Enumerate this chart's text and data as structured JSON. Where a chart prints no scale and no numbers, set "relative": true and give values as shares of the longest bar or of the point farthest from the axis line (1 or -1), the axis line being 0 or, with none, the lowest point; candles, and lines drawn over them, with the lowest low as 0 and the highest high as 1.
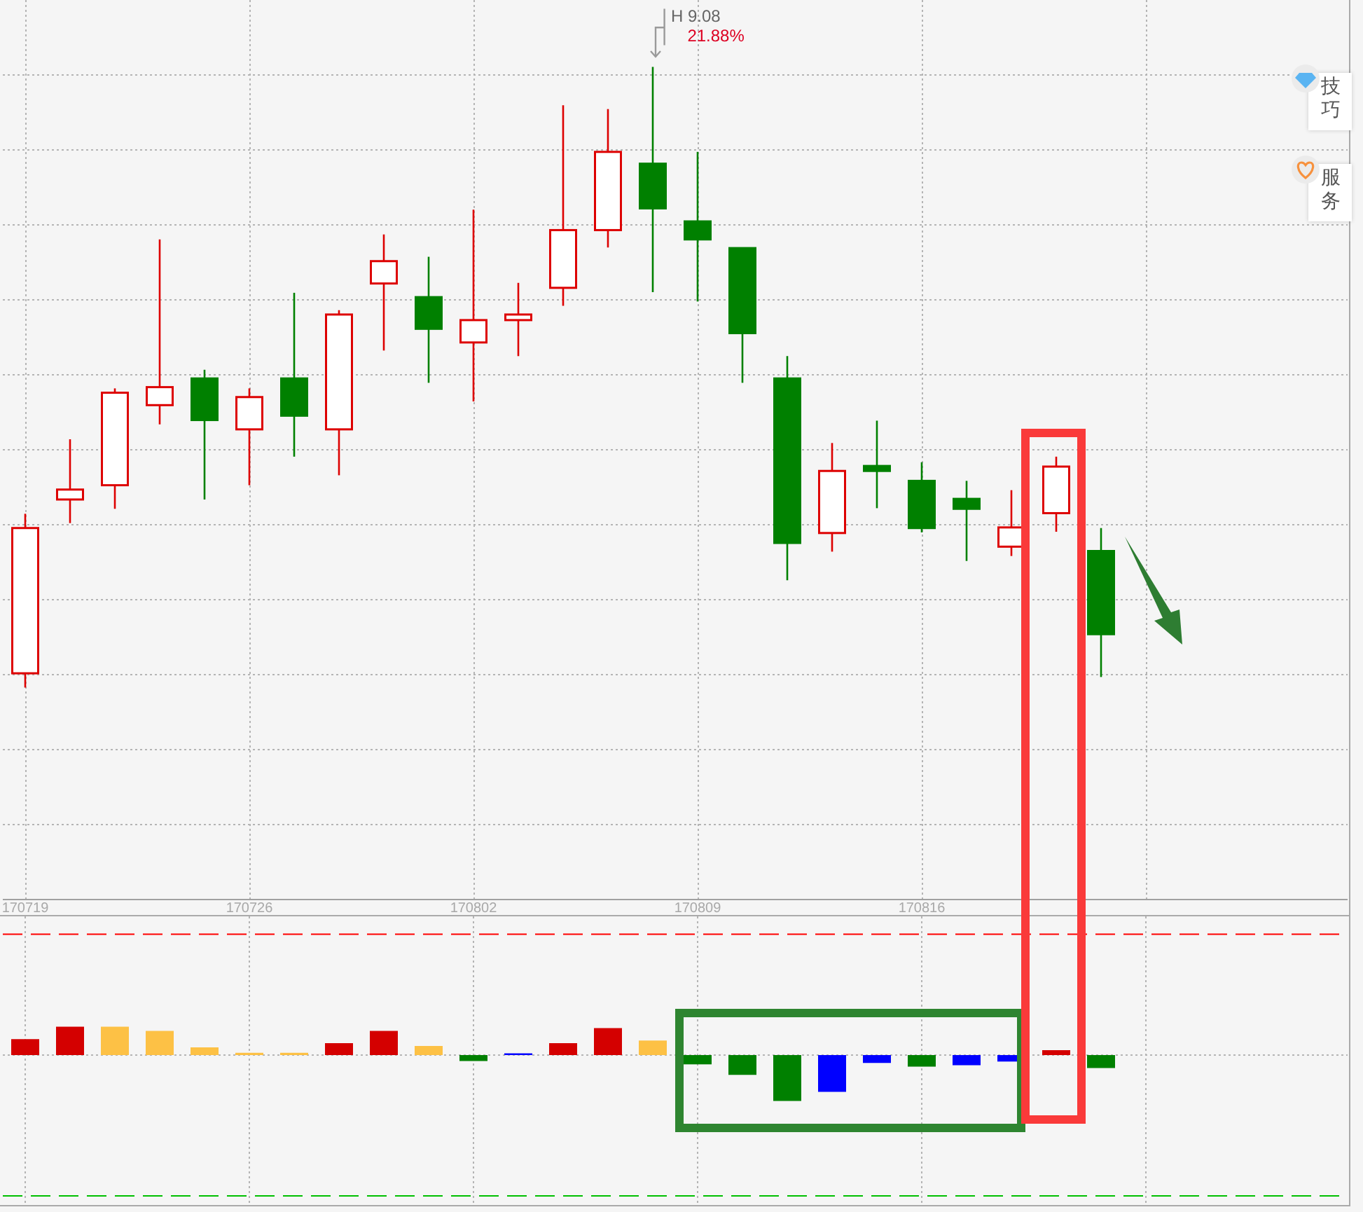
{
  "chart_data": [
    {
      "type": "candlestick",
      "relative": true,
      "grid": true,
      "categories": [
        "170719",
        null,
        null,
        null,
        null,
        "170726",
        null,
        null,
        null,
        null,
        "170802",
        null,
        null,
        null,
        null,
        "170809",
        null,
        null,
        null,
        null,
        "170816",
        null,
        null,
        null,
        null,
        null,
        null,
        null,
        null,
        null
      ],
      "ohlc": [
        [
          0.023,
          0.28,
          0,
          0.257
        ],
        [
          0.303,
          0.4,
          0.265,
          0.319
        ],
        [
          0.326,
          0.482,
          0.288,
          0.475
        ],
        [
          0.455,
          0.722,
          0.424,
          0.484
        ],
        [
          0.498,
          0.512,
          0.303,
          0.431
        ],
        [
          0.416,
          0.482,
          0.326,
          0.468
        ],
        [
          0.498,
          0.636,
          0.372,
          0.438
        ],
        [
          0.416,
          0.608,
          0.342,
          0.601
        ],
        [
          0.651,
          0.73,
          0.543,
          0.687
        ],
        [
          0.629,
          0.694,
          0.491,
          0.578
        ],
        [
          0.556,
          0.77,
          0.461,
          0.592
        ],
        [
          0.592,
          0.652,
          0.534,
          0.601
        ],
        [
          0.644,
          0.938,
          0.615,
          0.737
        ],
        [
          0.737,
          0.932,
          0.709,
          0.863
        ],
        [
          0.844,
          1,
          0.637,
          0.772
        ],
        [
          0.751,
          0.863,
          0.622,
          0.722
        ],
        [
          0.708,
          0.708,
          0.491,
          0.571
        ],
        [
          0.498,
          0.534,
          0.173,
          0.233
        ],
        [
          0.249,
          0.394,
          0.219,
          0.349
        ],
        [
          0.357,
          0.43,
          0.289,
          0.349
        ],
        [
          0.333,
          0.363,
          0.25,
          0.257
        ],
        [
          0.304,
          0.333,
          0.204,
          0.288
        ],
        [
          0.227,
          0.318,
          0.212,
          0.258
        ],
        [
          0.281,
          0.372,
          0.251,
          0.356
        ],
        [
          0.22,
          0.257,
          0.017,
          0.086
        ],
        null,
        null,
        null,
        null,
        null
      ],
      "colors": [
        "#dd0000",
        "#dd0000",
        "#dd0000",
        "#dd0000",
        "#008000",
        "#dd0000",
        "#008000",
        "#dd0000",
        "#dd0000",
        "#008000",
        "#dd0000",
        "#dd0000",
        "#dd0000",
        "#dd0000",
        "#008000",
        "#008000",
        "#008000",
        "#008000",
        "#dd0000",
        "#008000",
        "#008000",
        "#008000",
        "#dd0000",
        "#dd0000",
        "#008000",
        null,
        null,
        null,
        null,
        null
      ],
      "annotations": [
        "H 9.08",
        "21.88%",
        "技巧",
        "服务"
      ]
    },
    {
      "type": "bar",
      "relative": true,
      "grid": true,
      "tick_labels": false,
      "categories": [
        "170719",
        null,
        null,
        null,
        null,
        "170726",
        null,
        null,
        null,
        null,
        "170802",
        null,
        null,
        null,
        null,
        "170809",
        null,
        null,
        null,
        null,
        "170816",
        null,
        null,
        null,
        null,
        null,
        null,
        null,
        null,
        null
      ],
      "values": [
        0.35,
        0.62,
        0.62,
        0.53,
        0.17,
        0.05,
        0.05,
        0.26,
        0.53,
        0.2,
        -0.13,
        0.04,
        0.26,
        0.59,
        0.32,
        -0.2,
        -0.43,
        -1,
        -0.8,
        -0.17,
        -0.25,
        -0.22,
        -0.14,
        0.11,
        -0.28,
        null,
        null,
        null,
        null,
        null
      ],
      "colors": [
        "#d40000",
        "#d40000",
        "#fdc145",
        "#fdc145",
        "#fdc145",
        "#fdc145",
        "#fdc145",
        "#d40000",
        "#d40000",
        "#fdc145",
        "#008000",
        "#0000ff",
        "#d40000",
        "#d40000",
        "#fdc145",
        "#008000",
        "#008000",
        "#008000",
        "#0000ff",
        "#0000ff",
        "#008000",
        "#0000ff",
        "#0000ff",
        "#d40000",
        "#008000",
        null,
        null,
        null,
        null,
        null
      ],
      "ref_lines": [
        {
          "axis": "y",
          "value": 2.64,
          "color": "#ff0000",
          "line_style": "dashed"
        },
        {
          "axis": "y",
          "value": -3.07,
          "color": "#00c000",
          "line_style": "dashed"
        }
      ]
    }
  ]
}
